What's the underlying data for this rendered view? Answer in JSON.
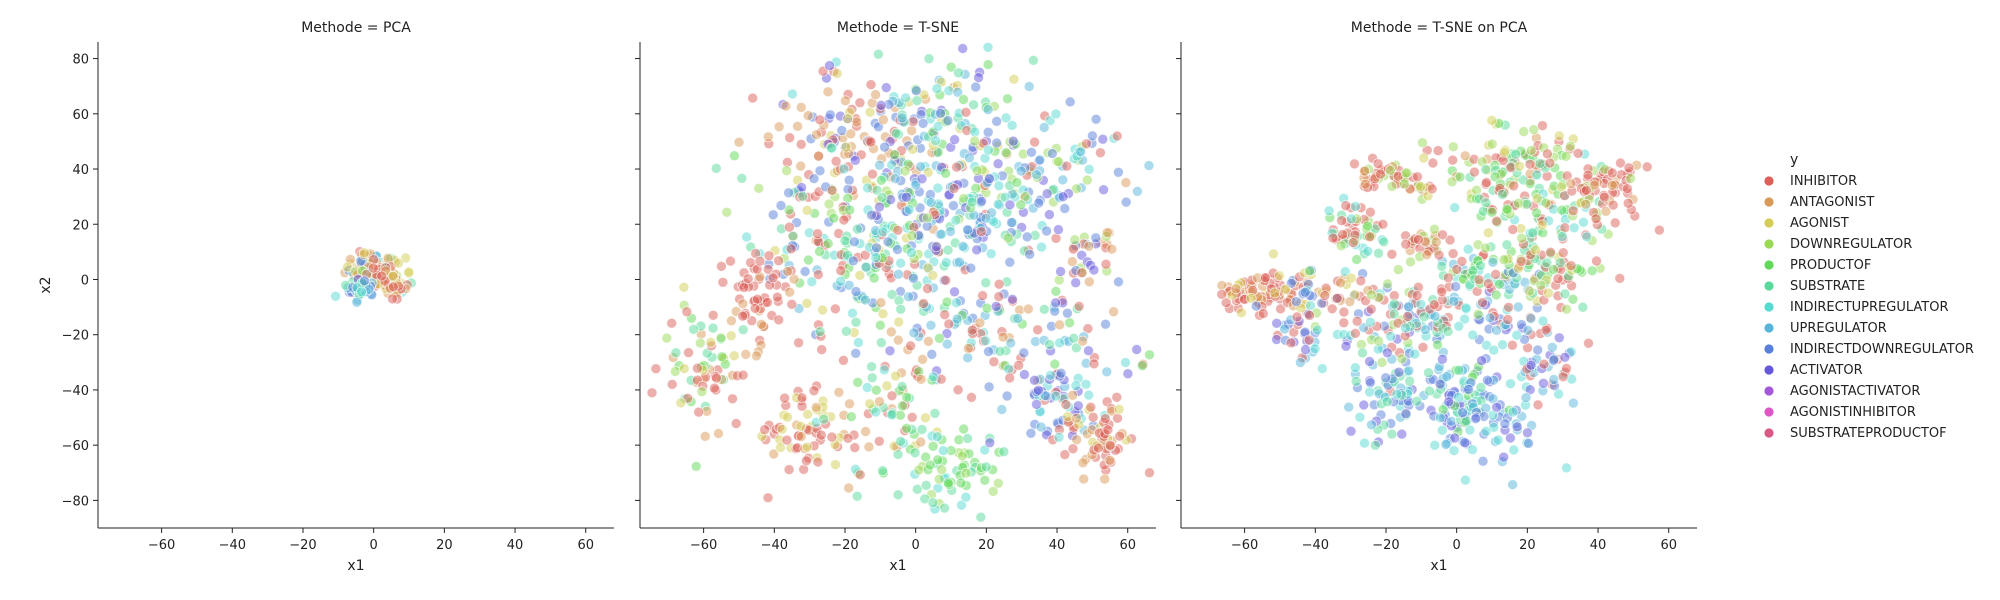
{
  "chart_data": {
    "type": "scatter",
    "facet_variable": "Methode",
    "xlabel": "x1",
    "ylabel": "x2",
    "xlim": [
      -78,
      68
    ],
    "ylim": [
      -90,
      86
    ],
    "x_ticks": [
      -60,
      -40,
      -20,
      0,
      20,
      40,
      60
    ],
    "y_ticks": [
      -80,
      -60,
      -40,
      -20,
      0,
      20,
      40,
      60,
      80
    ],
    "grid": false,
    "legend": {
      "title": "y",
      "placement": "right",
      "entries": [
        {
          "label": "INHIBITOR",
          "color": "#db5f57"
        },
        {
          "label": "ANTAGONIST",
          "color": "#d99a57"
        },
        {
          "label": "AGONIST",
          "color": "#d3cd56"
        },
        {
          "label": "DOWNREGULATOR",
          "color": "#9ad957"
        },
        {
          "label": "PRODUCTOF",
          "color": "#5fd957"
        },
        {
          "label": "SUBSTRATE",
          "color": "#57d99b"
        },
        {
          "label": "INDIRECTUPREGULATOR",
          "color": "#57d9d1"
        },
        {
          "label": "UPREGULATOR",
          "color": "#57b5db"
        },
        {
          "label": "INDIRECTDOWNREGULATOR",
          "color": "#577fdb"
        },
        {
          "label": "ACTIVATOR",
          "color": "#6557db"
        },
        {
          "label": "AGONISTACTIVATOR",
          "color": "#a557db"
        },
        {
          "label": "AGONISTINHIBITOR",
          "color": "#db57c8"
        },
        {
          "label": "SUBSTRATEPRODUCTOF",
          "color": "#db5787"
        }
      ]
    },
    "panels": [
      {
        "title": "Methode = PCA",
        "clusters": [
          {
            "cx": -3,
            "cy": 4,
            "sx": 2.5,
            "sy": 3,
            "n": 60,
            "mix": [
              0,
              0,
              1,
              1,
              2,
              3,
              6,
              7,
              8,
              9
            ]
          },
          {
            "cx": 2,
            "cy": 2,
            "sx": 3,
            "sy": 3,
            "n": 80,
            "mix": [
              0,
              1,
              1,
              2,
              2,
              3,
              5,
              6
            ]
          },
          {
            "cx": 5,
            "cy": -1,
            "sx": 2,
            "sy": 2.5,
            "n": 50,
            "mix": [
              0,
              0,
              0,
              1,
              2
            ]
          },
          {
            "cx": -4,
            "cy": -3,
            "sx": 2,
            "sy": 2,
            "n": 40,
            "mix": [
              6,
              7,
              8,
              9,
              5
            ]
          }
        ]
      },
      {
        "title": "Methode = T-SNE",
        "clusters": [
          {
            "cx": -20,
            "cy": 50,
            "sx": 14,
            "sy": 12,
            "n": 130,
            "mix": [
              0,
              0,
              1,
              1,
              2,
              9,
              8,
              0
            ]
          },
          {
            "cx": 5,
            "cy": 55,
            "sx": 14,
            "sy": 12,
            "n": 110,
            "mix": [
              6,
              7,
              8,
              9,
              5,
              4,
              2
            ]
          },
          {
            "cx": 35,
            "cy": 40,
            "sx": 13,
            "sy": 13,
            "n": 110,
            "mix": [
              8,
              9,
              7,
              6,
              0,
              3
            ]
          },
          {
            "cx": 15,
            "cy": 20,
            "sx": 12,
            "sy": 10,
            "n": 90,
            "mix": [
              8,
              9,
              7,
              6,
              5
            ]
          },
          {
            "cx": -25,
            "cy": 20,
            "sx": 12,
            "sy": 12,
            "n": 80,
            "mix": [
              0,
              4,
              5,
              3,
              6,
              8
            ]
          },
          {
            "cx": -10,
            "cy": 0,
            "sx": 15,
            "sy": 12,
            "n": 110,
            "mix": [
              0,
              0,
              5,
              4,
              6,
              7,
              8,
              2
            ]
          },
          {
            "cx": 20,
            "cy": -20,
            "sx": 17,
            "sy": 10,
            "n": 120,
            "mix": [
              0,
              0,
              1,
              4,
              5,
              6,
              7,
              8,
              9
            ]
          },
          {
            "cx": -45,
            "cy": -5,
            "sx": 6,
            "sy": 7,
            "n": 60,
            "mix": [
              0,
              0,
              0,
              1
            ]
          },
          {
            "cx": -60,
            "cy": -30,
            "sx": 6,
            "sy": 12,
            "n": 70,
            "mix": [
              0,
              0,
              1,
              4,
              5,
              3,
              2
            ]
          },
          {
            "cx": -30,
            "cy": -55,
            "sx": 10,
            "sy": 8,
            "n": 70,
            "mix": [
              0,
              0,
              0,
              1,
              2
            ]
          },
          {
            "cx": -10,
            "cy": -50,
            "sx": 9,
            "sy": 10,
            "n": 60,
            "mix": [
              0,
              1,
              2,
              5,
              4,
              6
            ]
          },
          {
            "cx": 10,
            "cy": -68,
            "sx": 8,
            "sy": 7,
            "n": 70,
            "mix": [
              4,
              5,
              4,
              3,
              6
            ]
          },
          {
            "cx": 40,
            "cy": -45,
            "sx": 8,
            "sy": 8,
            "n": 70,
            "mix": [
              8,
              9,
              7,
              6,
              0
            ]
          },
          {
            "cx": 52,
            "cy": -57,
            "sx": 5,
            "sy": 6,
            "n": 60,
            "mix": [
              0,
              0,
              1,
              1,
              2,
              0
            ]
          },
          {
            "cx": 50,
            "cy": 10,
            "sx": 6,
            "sy": 12,
            "n": 40,
            "mix": [
              0,
              1,
              3,
              8,
              9
            ]
          },
          {
            "cx": 0,
            "cy": 25,
            "sx": 12,
            "sy": 10,
            "n": 80,
            "mix": [
              0,
              5,
              4,
              6,
              7,
              9,
              8,
              3
            ]
          }
        ]
      },
      {
        "title": "Methode = T-SNE on PCA",
        "clusters": [
          {
            "cx": -55,
            "cy": -5,
            "sx": 7,
            "sy": 3,
            "n": 80,
            "mix": [
              0,
              0,
              1,
              1,
              2,
              0
            ]
          },
          {
            "cx": -38,
            "cy": -5,
            "sx": 7,
            "sy": 4,
            "n": 50,
            "mix": [
              1,
              0,
              2,
              6,
              8
            ]
          },
          {
            "cx": -46,
            "cy": -20,
            "sx": 3,
            "sy": 4,
            "n": 25,
            "mix": [
              8,
              9,
              7,
              0
            ]
          },
          {
            "cx": -20,
            "cy": -18,
            "sx": 10,
            "sy": 8,
            "n": 80,
            "mix": [
              7,
              6,
              8,
              9,
              0,
              0,
              3
            ]
          },
          {
            "cx": -8,
            "cy": -12,
            "sx": 5,
            "sy": 5,
            "n": 40,
            "mix": [
              0,
              6,
              7,
              5
            ]
          },
          {
            "cx": -15,
            "cy": -42,
            "sx": 9,
            "sy": 7,
            "n": 90,
            "mix": [
              7,
              6,
              8,
              9,
              5
            ]
          },
          {
            "cx": 2,
            "cy": -45,
            "sx": 5,
            "sy": 9,
            "n": 70,
            "mix": [
              7,
              6,
              8,
              9,
              5,
              4
            ]
          },
          {
            "cx": 12,
            "cy": -50,
            "sx": 6,
            "sy": 8,
            "n": 50,
            "mix": [
              7,
              6,
              8,
              9
            ]
          },
          {
            "cx": 25,
            "cy": -30,
            "sx": 5,
            "sy": 8,
            "n": 50,
            "mix": [
              0,
              0,
              7,
              8,
              9,
              6
            ]
          },
          {
            "cx": 12,
            "cy": -15,
            "sx": 6,
            "sy": 6,
            "n": 40,
            "mix": [
              7,
              6,
              8,
              9,
              0
            ]
          },
          {
            "cx": 3,
            "cy": 3,
            "sx": 5,
            "sy": 5,
            "n": 40,
            "mix": [
              0,
              3,
              4,
              5,
              6,
              7
            ]
          },
          {
            "cx": 14,
            "cy": 1,
            "sx": 5,
            "sy": 4,
            "n": 35,
            "mix": [
              0,
              8,
              7,
              5,
              4
            ]
          },
          {
            "cx": 28,
            "cy": 2,
            "sx": 6,
            "sy": 6,
            "n": 50,
            "mix": [
              0,
              3,
              4,
              5,
              2
            ]
          },
          {
            "cx": -28,
            "cy": 17,
            "sx": 6,
            "sy": 5,
            "n": 55,
            "mix": [
              0,
              0,
              3,
              4,
              5,
              6
            ]
          },
          {
            "cx": -10,
            "cy": 12,
            "sx": 4,
            "sy": 4,
            "n": 30,
            "mix": [
              0,
              0,
              1,
              3
            ]
          },
          {
            "cx": -22,
            "cy": 38,
            "sx": 4,
            "sy": 3,
            "n": 30,
            "mix": [
              0,
              0,
              1,
              3
            ]
          },
          {
            "cx": -12,
            "cy": 34,
            "sx": 4,
            "sy": 3,
            "n": 25,
            "mix": [
              0,
              3,
              2
            ]
          },
          {
            "cx": 12,
            "cy": 44,
            "sx": 10,
            "sy": 6,
            "n": 80,
            "mix": [
              0,
              0,
              3,
              4,
              5,
              2,
              1
            ]
          },
          {
            "cx": 25,
            "cy": 24,
            "sx": 9,
            "sy": 12,
            "n": 110,
            "mix": [
              0,
              0,
              3,
              4,
              5,
              2,
              6
            ]
          },
          {
            "cx": 42,
            "cy": 33,
            "sx": 6,
            "sy": 5,
            "n": 60,
            "mix": [
              0,
              0,
              0,
              3,
              1
            ]
          },
          {
            "cx": 10,
            "cy": 28,
            "sx": 4,
            "sy": 4,
            "n": 25,
            "mix": [
              0,
              3,
              4,
              5
            ]
          }
        ]
      }
    ]
  }
}
